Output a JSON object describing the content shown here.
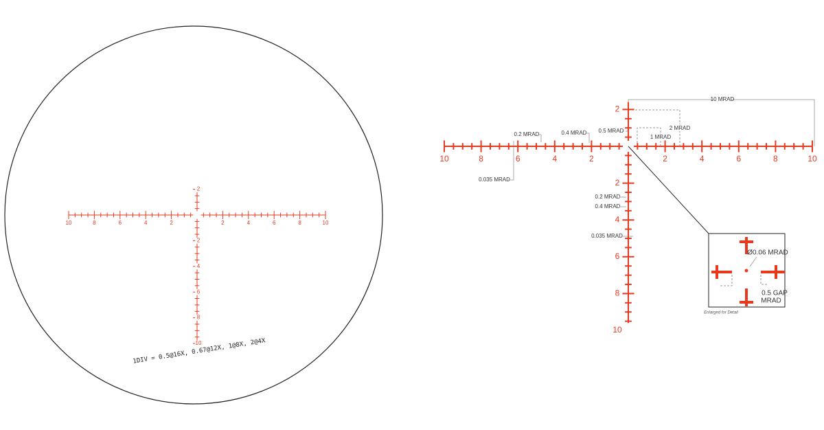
{
  "left_reticle": {
    "h_labels": [
      "10",
      "8",
      "6",
      "4",
      "2",
      "2",
      "4",
      "6",
      "8",
      "10"
    ],
    "v_labels_up": [
      "2"
    ],
    "v_labels_down": [
      "2",
      "4",
      "6",
      "8",
      "10"
    ],
    "caption": "1DIV = 0.5@16X, 0.67@12X, 1@8X, 2@4X"
  },
  "right_reticle": {
    "h_labels": [
      "10",
      "8",
      "6",
      "4",
      "2",
      "2",
      "4",
      "6",
      "8",
      "10"
    ],
    "v_labels_up": [
      "2"
    ],
    "v_labels_down": [
      "2",
      "4",
      "6",
      "8",
      "10"
    ],
    "annotations": {
      "ten": "10 MRAD",
      "two": "2 MRAD",
      "half": "0.5 MRAD",
      "one": "1 MRAD",
      "h_02": "0.2 MRAD",
      "h_04": "0.4 MRAD",
      "h_0035": "0.035 MRAD",
      "v_02": "0.2 MRAD",
      "v_04": "0.4 MRAD",
      "v_0035": "0.035 MRAD"
    },
    "inset": {
      "dot": "Ø0.06 MRAD",
      "gap_line1": "0.5 GAP",
      "gap_line2": "MRAD",
      "note": "Enlarged for Detail"
    }
  }
}
